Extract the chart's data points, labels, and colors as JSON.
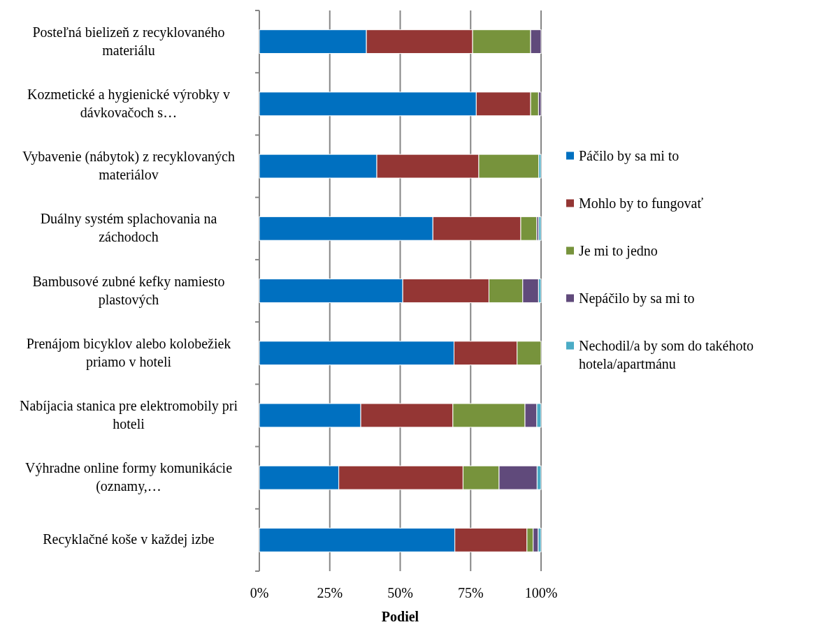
{
  "chart_data": {
    "type": "bar",
    "orientation": "horizontal",
    "stacked": true,
    "xlabel": "Podiel",
    "categories": [
      "Posteľná bielizeň z recyklovaného materiálu",
      "Kozmetické a hygienické výrobky v dávkovačoch s…",
      "Vybavenie (nábytok) z recyklovaných materiálov",
      "Duálny systém splachovania na záchodoch",
      "Bambusové zubné kefky namiesto plastových",
      "Prenájom bicyklov alebo kolobežiek priamo v hoteli",
      "Nabíjacia stanica pre elektromobily pri hoteli",
      "Výhradne online formy komunikácie (oznamy,…",
      "Recyklačné koše v každej izbe"
    ],
    "series": [
      {
        "name": "Páčilo by sa mi to",
        "color": "#0070c0",
        "values": [
          38,
          77,
          41.7,
          61.6,
          50.9,
          69.1,
          36,
          28.2,
          69.4
        ]
      },
      {
        "name": "Mohlo by to fungovať",
        "color": "#943634",
        "values": [
          37.7,
          19.3,
          36.2,
          31.2,
          30.6,
          22.4,
          32.7,
          44.1,
          25.6
        ]
      },
      {
        "name": "Je mi to jedno",
        "color": "#77933c",
        "values": [
          20.6,
          2.8,
          21.3,
          5.7,
          12,
          8.5,
          25.6,
          12.8,
          2.2
        ]
      },
      {
        "name": "Nepáčilo by sa mi to",
        "color": "#604a7b",
        "values": [
          3.7,
          0.9,
          0,
          0.7,
          5.6,
          0,
          4.2,
          13.5,
          1.8
        ]
      },
      {
        "name": "Nechodil/a by som do takéhoto hotela/apartmánu",
        "color": "#4bacc6",
        "values": [
          0,
          0,
          0.8,
          0.8,
          0.9,
          0,
          1.5,
          1.4,
          1
        ]
      }
    ],
    "xlim": [
      0,
      100
    ],
    "xticks": [
      {
        "value": 0,
        "label": "0%"
      },
      {
        "value": 25,
        "label": "25%"
      },
      {
        "value": 50,
        "label": "50%"
      },
      {
        "value": 75,
        "label": "75%"
      },
      {
        "value": 100,
        "label": "100%"
      }
    ],
    "grid": "x",
    "legend": "right"
  }
}
